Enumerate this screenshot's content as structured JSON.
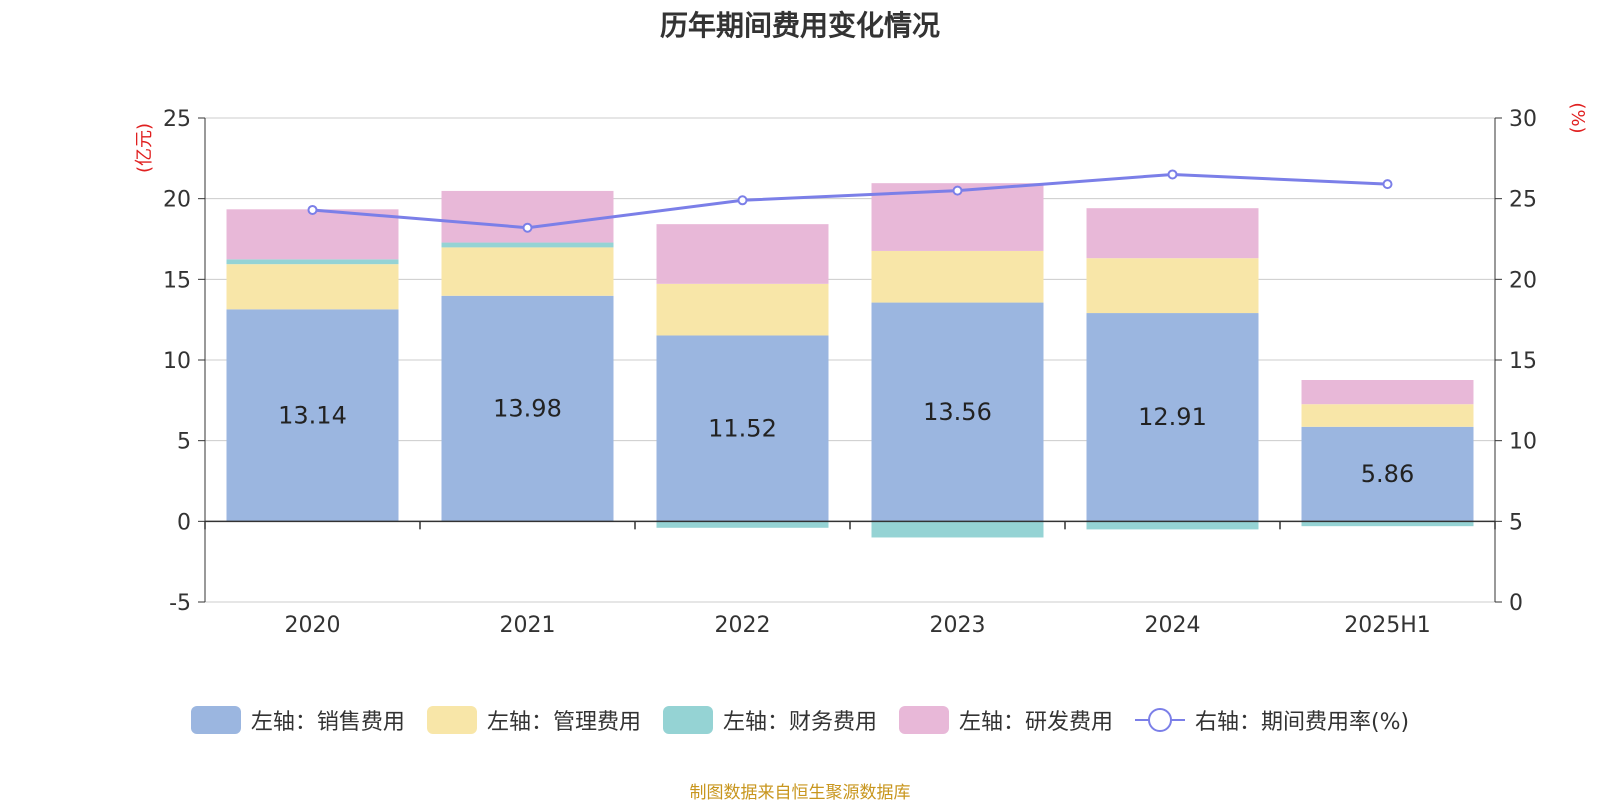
{
  "chart_data": {
    "type": "bar",
    "title": "历年期间费用变化情况",
    "categories": [
      "2020",
      "2021",
      "2022",
      "2023",
      "2024",
      "2025H1"
    ],
    "left_axis": {
      "unit": "(亿元)",
      "ylim": [
        -5,
        25
      ],
      "ticks": [
        "25",
        "20",
        "15",
        "10",
        "5",
        "0",
        "-5"
      ]
    },
    "right_axis": {
      "unit": "(%)",
      "ylim": [
        0,
        30
      ],
      "ticks": [
        "30",
        "25",
        "20",
        "15",
        "10",
        "5",
        "0"
      ]
    },
    "series": [
      {
        "name": "左轴：销售费用",
        "type": "bar",
        "color": "#9bb6e0",
        "values": [
          13.14,
          13.98,
          11.52,
          13.56,
          12.91,
          5.86
        ]
      },
      {
        "name": "左轴：管理费用",
        "type": "bar",
        "color": "#f8e6a8",
        "values": [
          2.8,
          3.0,
          3.2,
          3.2,
          3.4,
          1.4
        ]
      },
      {
        "name": "左轴：财务费用",
        "type": "bar",
        "color": "#95d3d4",
        "values": [
          0.3,
          0.3,
          -0.4,
          -1.0,
          -0.5,
          -0.3
        ]
      },
      {
        "name": "左轴：研发费用",
        "type": "bar",
        "color": "#e8b8d8",
        "values": [
          3.1,
          3.2,
          3.7,
          4.2,
          3.1,
          1.5
        ]
      },
      {
        "name": "右轴：期间费用率(%)",
        "type": "line",
        "axis": "right",
        "color": "#7b7fe8",
        "values": [
          24.3,
          23.2,
          24.9,
          25.5,
          26.5,
          25.9
        ]
      }
    ],
    "data_labels": [
      "13.14",
      "13.98",
      "11.52",
      "13.56",
      "12.91",
      "5.86"
    ],
    "grid": true,
    "legend_position": "bottom"
  },
  "source_note": "制图数据来自恒生聚源数据库"
}
